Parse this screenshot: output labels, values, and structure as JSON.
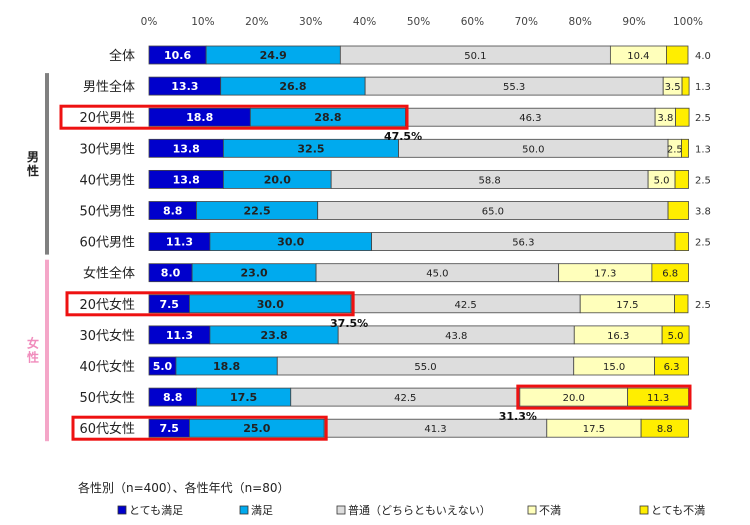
{
  "chart_data": {
    "type": "bar",
    "stacked": true,
    "orientation": "horizontal",
    "xlim": [
      0,
      100
    ],
    "x_ticks": [
      "0%",
      "10%",
      "20%",
      "30%",
      "40%",
      "50%",
      "60%",
      "70%",
      "80%",
      "90%",
      "100%"
    ],
    "grid": false,
    "legend_position": "bottom",
    "categories": [
      "全体",
      "男性全体",
      "20代男性",
      "30代男性",
      "40代男性",
      "50代男性",
      "60代男性",
      "女性全体",
      "20代女性",
      "30代女性",
      "40代女性",
      "50代女性",
      "60代女性"
    ],
    "series": [
      {
        "name": "とても満足",
        "color": "#0000cc",
        "values": [
          10.6,
          13.3,
          18.8,
          13.8,
          13.8,
          8.8,
          11.3,
          8.0,
          7.5,
          11.3,
          5.0,
          8.8,
          7.5
        ]
      },
      {
        "name": "満足",
        "color": "#00aaee",
        "values": [
          24.9,
          26.8,
          28.8,
          32.5,
          20.0,
          22.5,
          30.0,
          23.0,
          30.0,
          23.8,
          18.8,
          17.5,
          25.0
        ]
      },
      {
        "name": "普通（どちらともいえない）",
        "color": "#dddddd",
        "values": [
          50.1,
          55.3,
          46.3,
          50.0,
          58.8,
          65.0,
          56.3,
          45.0,
          42.5,
          43.8,
          55.0,
          42.5,
          41.3
        ]
      },
      {
        "name": "不満",
        "color": "#ffffbb",
        "values": [
          10.4,
          3.5,
          3.8,
          2.5,
          5.0,
          0.0,
          0.0,
          17.3,
          17.5,
          16.3,
          15.0,
          20.0,
          17.5
        ]
      },
      {
        "name": "とても不満",
        "color": "#ffee00",
        "values": [
          4.0,
          1.3,
          2.5,
          1.3,
          2.5,
          3.8,
          2.5,
          6.8,
          2.5,
          5.0,
          6.3,
          11.3,
          8.8
        ]
      }
    ],
    "group_labels": [
      {
        "label": "男性",
        "first": 1,
        "last": 6,
        "color": "#808080"
      },
      {
        "label": "女性",
        "first": 7,
        "last": 12,
        "color": "#f4a6c8"
      }
    ],
    "annotations": [
      {
        "text": "47.5%",
        "row": 2
      },
      {
        "text": "37.5%",
        "row": 8
      },
      {
        "text": "31.3%",
        "row": 11
      }
    ],
    "highlight_color": "#ee1111",
    "note": "各性別（n=400）、各性年代（n=80）"
  }
}
